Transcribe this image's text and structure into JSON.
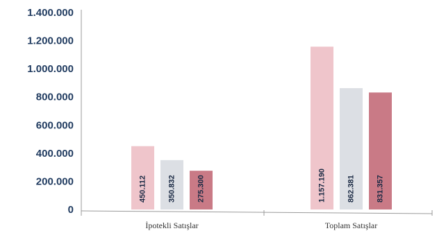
{
  "chart_data": {
    "type": "bar",
    "categories": [
      "İpotekli Satışlar",
      "Toplam Satışlar"
    ],
    "series": [
      {
        "values": [
          450112,
          1157190
        ],
        "labels": [
          "450.112",
          "1.157.190"
        ]
      },
      {
        "values": [
          350832,
          862381
        ],
        "labels": [
          "350.832",
          "862.381"
        ]
      },
      {
        "values": [
          275300,
          831357
        ],
        "labels": [
          "275.300",
          "831.357"
        ]
      }
    ],
    "ylim": [
      0,
      1400000
    ],
    "yticks": [
      "0",
      "200.000",
      "400.000",
      "600.000",
      "800.000",
      "1.000.000",
      "1.200.000",
      "1.400.000"
    ],
    "grid": false,
    "colors": [
      "#efc5cb",
      "#dcdfe4",
      "#c97a86"
    ],
    "axis_color": "#9a9a9a",
    "tick_label_color": "#1f3a5f"
  }
}
